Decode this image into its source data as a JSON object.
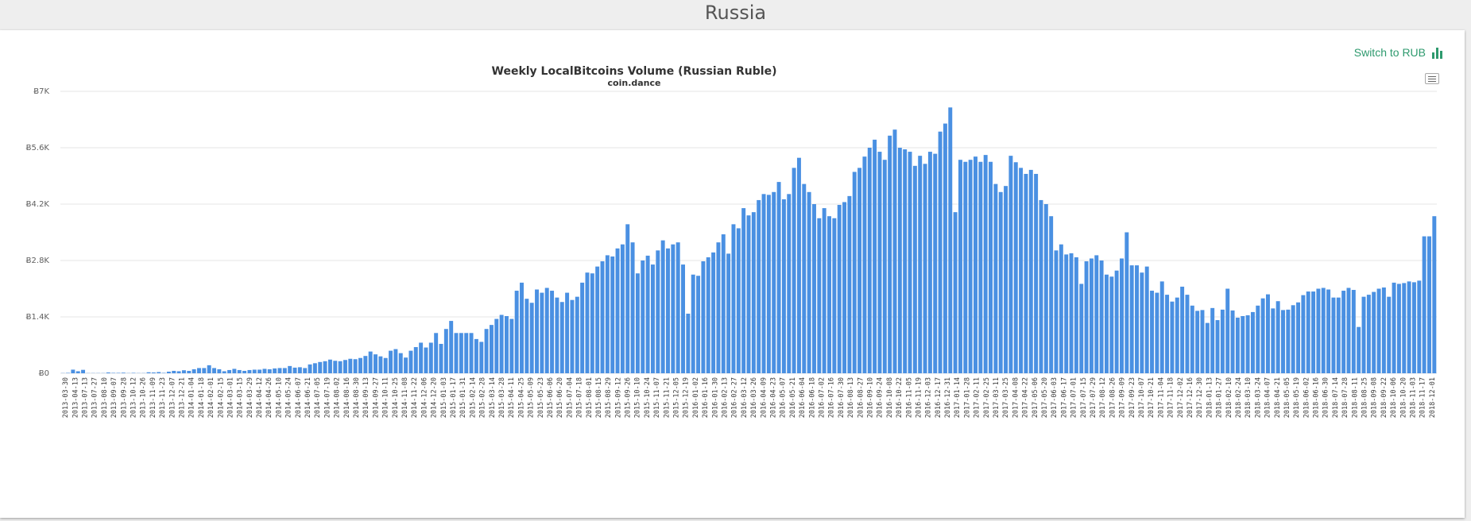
{
  "page": {
    "title": "Russia"
  },
  "toolbar": {
    "switch_label": "Switch to RUB",
    "switch_icon": "bar-chart-icon",
    "menu_icon": "hamburger-menu-icon"
  },
  "colors": {
    "bar": "#4a90e2",
    "accent": "#2e9a6e",
    "grid": "#e6e6e6"
  },
  "chart_data": {
    "type": "bar",
    "title": "Weekly LocalBitcoins Volume (Russian Ruble)",
    "subtitle": "coin.dance",
    "ylim": [
      0,
      7000
    ],
    "yticks": [
      0,
      1400,
      2800,
      4200,
      5600,
      7000
    ],
    "ytick_labels": [
      "Ƀ0",
      "Ƀ1.4K",
      "Ƀ2.8K",
      "Ƀ4.2K",
      "Ƀ5.6K",
      "Ƀ7K"
    ],
    "grid": true,
    "legend": "none",
    "x_tick_labels": [
      "2013-03-30",
      "2013-04-13",
      "2013-07-13",
      "2013-07-27",
      "2013-08-10",
      "2013-09-07",
      "2013-09-28",
      "2013-10-12",
      "2013-10-26",
      "2013-11-09",
      "2013-11-23",
      "2013-12-07",
      "2013-12-21",
      "2014-01-04",
      "2014-01-18",
      "2014-02-01",
      "2014-02-15",
      "2014-03-01",
      "2014-03-15",
      "2014-03-29",
      "2014-04-12",
      "2014-04-26",
      "2014-05-10",
      "2014-05-24",
      "2014-06-07",
      "2014-06-21",
      "2014-07-05",
      "2014-07-19",
      "2014-08-02",
      "2014-08-16",
      "2014-08-30",
      "2014-09-13",
      "2014-09-27",
      "2014-10-11",
      "2014-10-25",
      "2014-11-08",
      "2014-11-22",
      "2014-12-06",
      "2014-12-20",
      "2015-01-03",
      "2015-01-17",
      "2015-01-31",
      "2015-02-14",
      "2015-02-28",
      "2015-03-14",
      "2015-03-28",
      "2015-04-11",
      "2015-04-25",
      "2015-05-09",
      "2015-05-23",
      "2015-06-06",
      "2015-06-20",
      "2015-07-04",
      "2015-07-18",
      "2015-08-01",
      "2015-08-15",
      "2015-08-29",
      "2015-09-12",
      "2015-09-26",
      "2015-10-10",
      "2015-10-24",
      "2015-11-07",
      "2015-11-21",
      "2015-12-05",
      "2015-12-19",
      "2016-01-02",
      "2016-01-16",
      "2016-01-30",
      "2016-02-13",
      "2016-02-27",
      "2016-03-12",
      "2016-03-26",
      "2016-04-09",
      "2016-04-23",
      "2016-05-07",
      "2016-05-21",
      "2016-06-04",
      "2016-06-18",
      "2016-07-02",
      "2016-07-16",
      "2016-07-30",
      "2016-08-13",
      "2016-08-27",
      "2016-09-10",
      "2016-09-24",
      "2016-10-08",
      "2016-10-22",
      "2016-11-05",
      "2016-11-19",
      "2016-12-03",
      "2016-12-17",
      "2016-12-31",
      "2017-01-14",
      "2017-01-28",
      "2017-02-11",
      "2017-02-25",
      "2017-03-11",
      "2017-03-25",
      "2017-04-08",
      "2017-04-22",
      "2017-05-06",
      "2017-05-20",
      "2017-06-03",
      "2017-06-17",
      "2017-07-01",
      "2017-07-15",
      "2017-07-29",
      "2017-08-12",
      "2017-08-26",
      "2017-09-09",
      "2017-09-23",
      "2017-10-07",
      "2017-10-21",
      "2017-11-04",
      "2017-11-18",
      "2017-12-02",
      "2017-12-16",
      "2017-12-30",
      "2018-01-13",
      "2018-01-27",
      "2018-02-10",
      "2018-02-24",
      "2018-03-10",
      "2018-03-24",
      "2018-04-07",
      "2018-04-21",
      "2018-05-05",
      "2018-05-19",
      "2018-06-02",
      "2018-06-16",
      "2018-06-30",
      "2018-07-14",
      "2018-07-28",
      "2018-08-11",
      "2018-08-25",
      "2018-09-08",
      "2018-09-22",
      "2018-10-06",
      "2018-10-20",
      "2018-11-03",
      "2018-11-17",
      "2018-12-01"
    ],
    "values": [
      5,
      10,
      90,
      50,
      85,
      5,
      5,
      5,
      5,
      20,
      10,
      10,
      15,
      5,
      10,
      5,
      5,
      25,
      20,
      30,
      10,
      40,
      60,
      50,
      75,
      60,
      100,
      130,
      130,
      200,
      130,
      100,
      50,
      80,
      110,
      80,
      60,
      80,
      90,
      90,
      110,
      100,
      120,
      130,
      130,
      180,
      140,
      150,
      130,
      220,
      250,
      280,
      300,
      340,
      310,
      300,
      330,
      360,
      350,
      380,
      430,
      540,
      470,
      420,
      380,
      560,
      600,
      500,
      390,
      560,
      650,
      760,
      640,
      760,
      1000,
      730,
      1100,
      1300,
      1000,
      1000,
      1000,
      1000,
      850,
      780,
      1100,
      1200,
      1350,
      1450,
      1420,
      1350,
      2050,
      2250,
      1850,
      1750,
      2080,
      2000,
      2120,
      2050,
      1880,
      1770,
      2000,
      1820,
      1900,
      2250,
      2500,
      2480,
      2650,
      2780,
      2930,
      2900,
      3100,
      3200,
      3700,
      3250,
      2480,
      2800,
      2920,
      2700,
      3050,
      3300,
      3100,
      3200,
      3250,
      2700,
      1480,
      2450,
      2420,
      2780,
      2880,
      3000,
      3250,
      3450,
      2970,
      3700,
      3600,
      4100,
      3920,
      4000,
      4300,
      4450,
      4430,
      4500,
      4750,
      4320,
      4450,
      5100,
      5350,
      4700,
      4500,
      4200,
      3850,
      4100,
      3900,
      3850,
      4180,
      4250,
      4400,
      5000,
      5100,
      5380,
      5600,
      5800,
      5500,
      5300,
      5900,
      6050,
      5600,
      5560,
      5500,
      5150,
      5400,
      5200,
      5500,
      5450,
      6000,
      6200,
      6600,
      4000,
      5300,
      5250,
      5300,
      5380,
      5250,
      5420,
      5250,
      4700,
      4500,
      4650,
      5400,
      5240,
      5100,
      4950,
      5050,
      4950,
      4300,
      4200,
      3900,
      3050,
      3200,
      2950,
      2980,
      2880,
      2220,
      2780,
      2850,
      2930,
      2800,
      2450,
      2400,
      2550,
      2850,
      3500,
      2680,
      2680,
      2500,
      2650,
      2050,
      2000,
      2280,
      1950,
      1780,
      1880,
      2150,
      1950,
      1680,
      1550,
      1570,
      1250,
      1620,
      1320,
      1580,
      2100,
      1560,
      1380,
      1420,
      1440,
      1520,
      1680,
      1860,
      1960,
      1610,
      1790,
      1570,
      1580,
      1690,
      1760,
      1940,
      2030,
      2030,
      2100,
      2120,
      2080,
      1880,
      1880,
      2050,
      2120,
      2070,
      1150,
      1900,
      1950,
      2020,
      2100,
      2130,
      1900,
      2250,
      2220,
      2240,
      2280,
      2260,
      2300,
      3400,
      3400,
      3900
    ]
  }
}
